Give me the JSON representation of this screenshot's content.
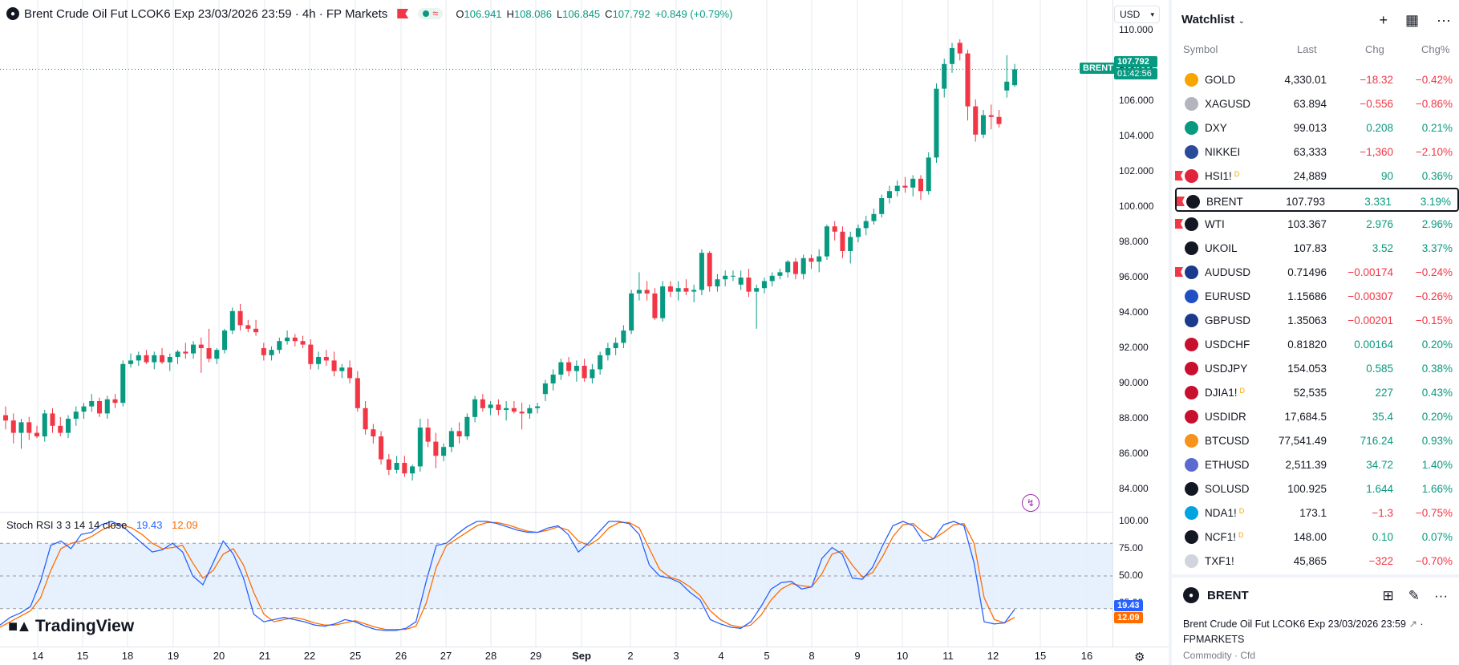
{
  "header": {
    "title": "Brent Crude Oil Fut LCOK6 Exp 23/03/2026 23:59 · 4h · FP Markets",
    "ohlc": {
      "o_label": "O",
      "o": "106.941",
      "h_label": "H",
      "h": "108.086",
      "l_label": "L",
      "l": "106.845",
      "c_label": "C",
      "c": "107.792",
      "change": "+0.849 (+0.79%)"
    }
  },
  "currency": "USD",
  "price_axis": {
    "ticks": [
      "110.000",
      "108.000",
      "106.000",
      "104.000",
      "102.000",
      "100.000",
      "98.000",
      "96.000",
      "94.000",
      "92.000",
      "90.000",
      "88.000",
      "86.000",
      "84.000"
    ],
    "current_symbol": "BRENT",
    "current_price": "107.792",
    "countdown": "01:42:56"
  },
  "stoch": {
    "label": "Stoch RSI 3 3 14 14 close",
    "k": "19.43",
    "d": "12.09",
    "ticks": [
      "100.00",
      "75.00",
      "50.00",
      "25.00"
    ],
    "k_tag": "19.43",
    "d_tag": "12.09"
  },
  "time_axis": [
    "14",
    "15",
    "18",
    "19",
    "20",
    "21",
    "22",
    "25",
    "26",
    "27",
    "28",
    "29",
    "Sep",
    "2",
    "3",
    "4",
    "5",
    "8",
    "9",
    "10",
    "11",
    "12",
    "15",
    "16"
  ],
  "logo": "TradingView",
  "watchlist": {
    "title": "Watchlist",
    "columns": {
      "symbol": "Symbol",
      "last": "Last",
      "chg": "Chg",
      "chgp": "Chg%"
    },
    "rows": [
      {
        "sym": "GOLD",
        "sup": "",
        "last": "4,330.01",
        "chg": "−18.32",
        "chgp": "−0.42%",
        "dir": "neg",
        "flag": false,
        "icon": "gold-icon",
        "color": "#f7a600"
      },
      {
        "sym": "XAGUSD",
        "sup": "",
        "last": "63.894",
        "chg": "−0.556",
        "chgp": "−0.86%",
        "dir": "neg",
        "flag": false,
        "icon": "silver-icon",
        "color": "#b2b5be"
      },
      {
        "sym": "DXY",
        "sup": "",
        "last": "99.013",
        "chg": "0.208",
        "chgp": "0.21%",
        "dir": "pos",
        "flag": false,
        "icon": "dollar-icon",
        "color": "#089981"
      },
      {
        "sym": "NIKKEI",
        "sup": "",
        "last": "63,333",
        "chg": "−1,360",
        "chgp": "−2.10%",
        "dir": "neg",
        "flag": false,
        "icon": "nikkei-icon",
        "color": "#2a4a9b"
      },
      {
        "sym": "HSI1!",
        "sup": "D",
        "last": "24,889",
        "chg": "90",
        "chgp": "0.36%",
        "dir": "pos",
        "flag": true,
        "icon": "hsi-icon",
        "color": "#e0243b"
      },
      {
        "sym": "BRENT",
        "sup": "",
        "last": "107.793",
        "chg": "3.331",
        "chgp": "3.19%",
        "dir": "pos",
        "flag": true,
        "icon": "oil-drop-icon",
        "color": "#131722",
        "selected": true
      },
      {
        "sym": "WTI",
        "sup": "",
        "last": "103.367",
        "chg": "2.976",
        "chgp": "2.96%",
        "dir": "pos",
        "flag": true,
        "icon": "oil-drop-icon",
        "color": "#131722"
      },
      {
        "sym": "UKOIL",
        "sup": "",
        "last": "107.83",
        "chg": "3.52",
        "chgp": "3.37%",
        "dir": "pos",
        "flag": false,
        "icon": "oil-drop-icon",
        "color": "#131722"
      },
      {
        "sym": "AUDUSD",
        "sup": "",
        "last": "0.71496",
        "chg": "−0.00174",
        "chgp": "−0.24%",
        "dir": "neg",
        "flag": true,
        "icon": "aud-flag-icon",
        "color": "#1b3a8c"
      },
      {
        "sym": "EURUSD",
        "sup": "",
        "last": "1.15686",
        "chg": "−0.00307",
        "chgp": "−0.26%",
        "dir": "neg",
        "flag": false,
        "icon": "eur-flag-icon",
        "color": "#1f4fc2"
      },
      {
        "sym": "GBPUSD",
        "sup": "",
        "last": "1.35063",
        "chg": "−0.00201",
        "chgp": "−0.15%",
        "dir": "neg",
        "flag": false,
        "icon": "gbp-flag-icon",
        "color": "#1b3a8c"
      },
      {
        "sym": "USDCHF",
        "sup": "",
        "last": "0.81820",
        "chg": "0.00164",
        "chgp": "0.20%",
        "dir": "pos",
        "flag": false,
        "icon": "usd-flag-icon",
        "color": "#c8102e"
      },
      {
        "sym": "USDJPY",
        "sup": "",
        "last": "154.053",
        "chg": "0.585",
        "chgp": "0.38%",
        "dir": "pos",
        "flag": false,
        "icon": "usd-flag-icon",
        "color": "#c8102e"
      },
      {
        "sym": "DJIA1!",
        "sup": "D",
        "last": "52,535",
        "chg": "227",
        "chgp": "0.43%",
        "dir": "pos",
        "flag": false,
        "icon": "us-flag-icon",
        "color": "#c8102e"
      },
      {
        "sym": "USDIDR",
        "sup": "",
        "last": "17,684.5",
        "chg": "35.4",
        "chgp": "0.20%",
        "dir": "pos",
        "flag": false,
        "icon": "usd-flag-icon",
        "color": "#c8102e"
      },
      {
        "sym": "BTCUSD",
        "sup": "",
        "last": "77,541.49",
        "chg": "716.24",
        "chgp": "0.93%",
        "dir": "pos",
        "flag": false,
        "icon": "bitcoin-icon",
        "color": "#f7931a"
      },
      {
        "sym": "ETHUSD",
        "sup": "",
        "last": "2,511.39",
        "chg": "34.72",
        "chgp": "1.40%",
        "dir": "pos",
        "flag": false,
        "icon": "ethereum-icon",
        "color": "#5b6ad0"
      },
      {
        "sym": "SOLUSD",
        "sup": "",
        "last": "100.925",
        "chg": "1.644",
        "chgp": "1.66%",
        "dir": "pos",
        "flag": false,
        "icon": "solana-icon",
        "color": "#131722"
      },
      {
        "sym": "NDA1!",
        "sup": "D",
        "last": "173.1",
        "chg": "−1.3",
        "chgp": "−0.75%",
        "dir": "neg",
        "flag": false,
        "icon": "nda-icon",
        "color": "#00a5e0"
      },
      {
        "sym": "NCF1!",
        "sup": "D",
        "last": "148.00",
        "chg": "0.10",
        "chgp": "0.07%",
        "dir": "pos",
        "flag": false,
        "icon": "ncf-icon",
        "color": "#131722"
      },
      {
        "sym": "TXF1!",
        "sup": "",
        "last": "45,865",
        "chg": "−322",
        "chgp": "−0.70%",
        "dir": "neg",
        "flag": false,
        "icon": "txf-icon",
        "color": "#d1d4dc"
      }
    ]
  },
  "details": {
    "symbol": "BRENT",
    "name": "Brent Crude Oil Fut LCOK6 Exp 23/03/2026 23:59",
    "exchange": "FPMARKETS",
    "category": "Commodity · Cfd"
  },
  "colors": {
    "up": "#089981",
    "down": "#f23645",
    "k_line": "#2962ff",
    "d_line": "#ff6d00"
  },
  "chart_data": {
    "type": "candlestick",
    "ylim": [
      83,
      111
    ],
    "candles": [
      [
        88.2,
        88.7,
        87.4,
        87.9
      ],
      [
        87.9,
        88.3,
        86.6,
        87.2
      ],
      [
        87.2,
        88.0,
        86.3,
        87.8
      ],
      [
        87.8,
        88.1,
        86.8,
        87.2
      ],
      [
        87.2,
        87.6,
        86.9,
        87.0
      ],
      [
        87.0,
        88.5,
        86.7,
        88.3
      ],
      [
        88.3,
        88.6,
        87.2,
        87.6
      ],
      [
        87.6,
        88.1,
        87.0,
        87.2
      ],
      [
        87.2,
        88.2,
        86.9,
        88.0
      ],
      [
        88.0,
        88.7,
        87.6,
        88.4
      ],
      [
        88.4,
        88.9,
        88.0,
        88.7
      ],
      [
        88.7,
        89.4,
        88.4,
        89.0
      ],
      [
        89.0,
        89.2,
        88.1,
        88.3
      ],
      [
        88.3,
        89.3,
        88.0,
        89.1
      ],
      [
        89.1,
        89.4,
        88.6,
        88.9
      ],
      [
        88.9,
        91.3,
        88.7,
        91.1
      ],
      [
        91.1,
        91.7,
        90.9,
        91.3
      ],
      [
        91.3,
        91.8,
        91.0,
        91.6
      ],
      [
        91.6,
        91.9,
        91.1,
        91.2
      ],
      [
        91.2,
        91.8,
        90.8,
        91.6
      ],
      [
        91.6,
        92.0,
        91.1,
        91.2
      ],
      [
        91.2,
        91.7,
        90.7,
        91.5
      ],
      [
        91.5,
        91.9,
        91.1,
        91.8
      ],
      [
        91.8,
        92.3,
        91.4,
        91.7
      ],
      [
        91.7,
        92.4,
        91.4,
        92.2
      ],
      [
        92.2,
        92.6,
        90.6,
        92.0
      ],
      [
        92.0,
        93.1,
        91.2,
        91.4
      ],
      [
        91.4,
        92.0,
        91.1,
        91.9
      ],
      [
        91.9,
        93.1,
        91.7,
        93.0
      ],
      [
        93.0,
        94.3,
        92.8,
        94.1
      ],
      [
        94.1,
        94.5,
        93.0,
        93.3
      ],
      [
        93.3,
        93.6,
        92.9,
        93.1
      ],
      [
        93.1,
        93.6,
        92.7,
        92.9
      ],
      [
        92.0,
        92.3,
        91.3,
        91.6
      ],
      [
        91.6,
        92.1,
        91.3,
        91.9
      ],
      [
        91.9,
        92.6,
        91.7,
        92.4
      ],
      [
        92.4,
        93.0,
        92.2,
        92.6
      ],
      [
        92.6,
        92.8,
        92.1,
        92.4
      ],
      [
        92.4,
        92.7,
        92.0,
        92.2
      ],
      [
        92.2,
        92.5,
        90.8,
        91.1
      ],
      [
        91.1,
        91.8,
        90.8,
        91.5
      ],
      [
        91.5,
        91.9,
        91.0,
        91.3
      ],
      [
        91.3,
        91.8,
        90.4,
        90.7
      ],
      [
        90.7,
        91.1,
        90.3,
        90.9
      ],
      [
        90.9,
        91.3,
        90.0,
        90.3
      ],
      [
        90.3,
        90.7,
        88.4,
        88.6
      ],
      [
        88.6,
        89.0,
        87.1,
        87.4
      ],
      [
        87.4,
        87.7,
        86.6,
        87.0
      ],
      [
        87.0,
        87.3,
        85.4,
        85.7
      ],
      [
        85.7,
        86.0,
        84.8,
        85.1
      ],
      [
        85.1,
        85.9,
        84.9,
        85.5
      ],
      [
        85.5,
        85.9,
        84.7,
        84.9
      ],
      [
        84.9,
        85.4,
        84.5,
        85.3
      ],
      [
        85.3,
        88.0,
        85.0,
        87.5
      ],
      [
        87.5,
        88.0,
        86.4,
        86.7
      ],
      [
        86.7,
        87.2,
        85.2,
        85.9
      ],
      [
        85.9,
        86.6,
        85.6,
        86.4
      ],
      [
        86.4,
        87.5,
        86.1,
        87.3
      ],
      [
        87.3,
        87.8,
        86.6,
        87.0
      ],
      [
        87.0,
        88.3,
        86.8,
        88.1
      ],
      [
        88.1,
        89.3,
        87.8,
        89.1
      ],
      [
        89.1,
        89.4,
        88.4,
        88.6
      ],
      [
        88.6,
        89.0,
        88.2,
        88.8
      ],
      [
        88.8,
        89.1,
        88.2,
        88.5
      ],
      [
        88.5,
        89.0,
        87.9,
        88.6
      ],
      [
        88.6,
        89.0,
        88.3,
        88.4
      ],
      [
        88.4,
        88.9,
        87.4,
        88.3
      ],
      [
        88.3,
        88.8,
        88.0,
        88.6
      ],
      [
        88.6,
        88.9,
        88.3,
        88.7
      ],
      [
        89.4,
        90.2,
        89.0,
        90.0
      ],
      [
        90.0,
        90.8,
        89.6,
        90.5
      ],
      [
        90.5,
        91.4,
        90.2,
        91.2
      ],
      [
        91.2,
        91.5,
        90.4,
        90.7
      ],
      [
        90.7,
        91.3,
        90.1,
        91.0
      ],
      [
        91.0,
        91.4,
        90.1,
        90.3
      ],
      [
        90.3,
        91.1,
        90.0,
        90.8
      ],
      [
        90.8,
        91.8,
        90.5,
        91.6
      ],
      [
        91.6,
        92.3,
        91.3,
        92.0
      ],
      [
        92.0,
        92.6,
        91.6,
        92.3
      ],
      [
        92.3,
        93.3,
        92.0,
        93.0
      ],
      [
        93.0,
        95.3,
        92.8,
        95.1
      ],
      [
        95.1,
        96.3,
        94.7,
        95.3
      ],
      [
        95.3,
        95.8,
        94.7,
        95.1
      ],
      [
        95.1,
        95.4,
        93.6,
        93.7
      ],
      [
        93.7,
        95.8,
        93.5,
        95.5
      ],
      [
        95.5,
        95.8,
        94.9,
        95.2
      ],
      [
        95.2,
        95.8,
        94.7,
        95.4
      ],
      [
        95.4,
        95.9,
        95.0,
        95.2
      ],
      [
        95.2,
        95.6,
        94.6,
        95.3
      ],
      [
        95.3,
        97.6,
        95.0,
        97.4
      ],
      [
        97.4,
        97.5,
        95.2,
        95.5
      ],
      [
        95.5,
        96.2,
        95.2,
        95.9
      ],
      [
        95.9,
        96.4,
        95.5,
        96.1
      ],
      [
        96.1,
        96.4,
        95.8,
        96.1
      ],
      [
        95.6,
        96.4,
        95.3,
        96.0
      ],
      [
        96.0,
        96.5,
        94.9,
        95.2
      ],
      [
        95.2,
        95.6,
        93.1,
        95.4
      ],
      [
        95.4,
        96.0,
        95.1,
        95.8
      ],
      [
        95.8,
        96.3,
        95.5,
        96.1
      ],
      [
        96.1,
        96.5,
        95.9,
        96.3
      ],
      [
        96.3,
        97.0,
        96.0,
        96.9
      ],
      [
        96.9,
        97.1,
        95.9,
        96.2
      ],
      [
        96.2,
        97.3,
        95.9,
        97.1
      ],
      [
        97.1,
        97.3,
        96.5,
        96.9
      ],
      [
        96.9,
        97.6,
        96.3,
        97.2
      ],
      [
        97.2,
        99.0,
        97.0,
        98.9
      ],
      [
        98.9,
        99.2,
        98.1,
        98.6
      ],
      [
        98.6,
        98.9,
        97.1,
        97.5
      ],
      [
        97.5,
        98.6,
        96.8,
        98.3
      ],
      [
        98.3,
        99.0,
        98.0,
        98.8
      ],
      [
        98.8,
        99.5,
        98.4,
        99.2
      ],
      [
        99.2,
        99.9,
        99.0,
        99.6
      ],
      [
        99.6,
        100.7,
        99.4,
        100.5
      ],
      [
        100.5,
        101.2,
        100.2,
        100.9
      ],
      [
        100.9,
        101.5,
        100.6,
        101.2
      ],
      [
        101.2,
        101.7,
        100.8,
        101.1
      ],
      [
        101.1,
        101.8,
        100.6,
        101.6
      ],
      [
        101.6,
        101.8,
        100.4,
        100.9
      ],
      [
        100.9,
        103.1,
        100.7,
        102.8
      ],
      [
        102.8,
        107.0,
        102.5,
        106.7
      ],
      [
        106.7,
        108.4,
        106.2,
        108.1
      ],
      [
        108.1,
        109.3,
        107.6,
        109.0
      ],
      [
        109.3,
        109.5,
        108.3,
        108.7
      ],
      [
        108.7,
        108.9,
        104.9,
        105.7
      ],
      [
        105.7,
        106.1,
        103.7,
        104.1
      ],
      [
        104.1,
        105.5,
        103.9,
        105.2
      ],
      [
        105.2,
        105.8,
        104.4,
        105.1
      ],
      [
        105.1,
        105.5,
        104.5,
        104.7
      ],
      [
        106.6,
        108.6,
        106.2,
        107.1
      ],
      [
        106.9,
        108.1,
        106.8,
        107.8
      ]
    ],
    "stoch_k": [
      5,
      12,
      16,
      22,
      45,
      78,
      82,
      75,
      88,
      90,
      97,
      100,
      96,
      88,
      80,
      72,
      74,
      80,
      72,
      50,
      42,
      62,
      82,
      70,
      48,
      15,
      8,
      10,
      12,
      10,
      8,
      5,
      4,
      6,
      10,
      8,
      4,
      1,
      0,
      0,
      2,
      8,
      45,
      78,
      80,
      88,
      95,
      100,
      100,
      98,
      95,
      92,
      90,
      90,
      94,
      96,
      88,
      72,
      80,
      90,
      100,
      100,
      98,
      88,
      60,
      50,
      48,
      44,
      35,
      28,
      10,
      6,
      3,
      2,
      8,
      22,
      38,
      44,
      45,
      38,
      40,
      66,
      76,
      70,
      48,
      47,
      58,
      78,
      96,
      100,
      96,
      82,
      84,
      97,
      100,
      96,
      62,
      8,
      6,
      7,
      19.43
    ],
    "stoch_d": [
      3,
      8,
      13,
      18,
      30,
      55,
      75,
      80,
      82,
      86,
      92,
      96,
      97,
      94,
      88,
      80,
      75,
      76,
      78,
      62,
      48,
      55,
      70,
      75,
      60,
      35,
      15,
      8,
      10,
      12,
      10,
      7,
      5,
      5,
      7,
      9,
      6,
      3,
      1,
      1,
      1,
      4,
      25,
      58,
      78,
      84,
      90,
      96,
      99,
      99,
      97,
      94,
      91,
      90,
      92,
      95,
      92,
      82,
      78,
      84,
      94,
      99,
      99,
      94,
      75,
      56,
      49,
      46,
      40,
      32,
      18,
      10,
      5,
      3,
      5,
      14,
      28,
      38,
      43,
      41,
      40,
      52,
      70,
      73,
      60,
      49,
      53,
      68,
      86,
      97,
      98,
      90,
      84,
      90,
      97,
      98,
      80,
      30,
      10,
      7,
      12.09
    ]
  }
}
